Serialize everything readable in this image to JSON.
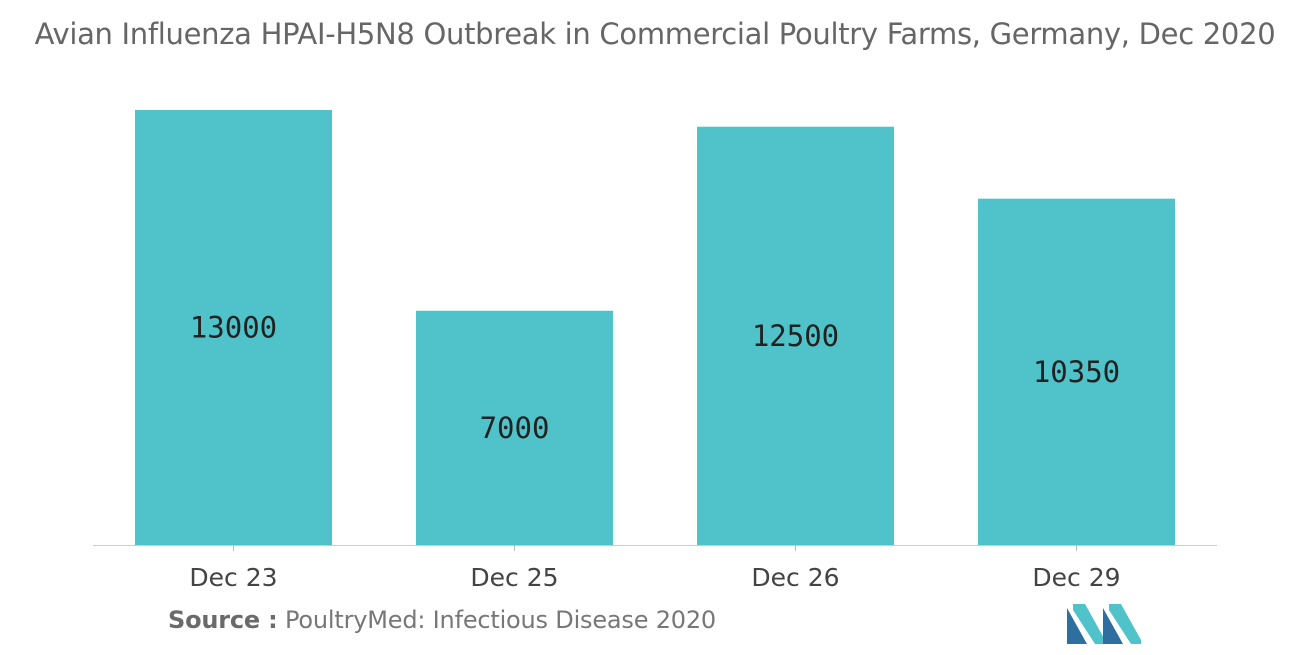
{
  "chart_data": {
    "type": "bar",
    "title": "Avian Influenza HPAI-H5N8 Outbreak in Commercial Poultry Farms, Germany, Dec 2020",
    "categories": [
      "Dec 23",
      "Dec 25",
      "Dec 26",
      "Dec 29"
    ],
    "values": [
      13000,
      7000,
      12500,
      10350
    ],
    "data_labels": [
      "13000",
      "7000",
      "12500",
      "10350"
    ],
    "xlabel": "",
    "ylabel": "",
    "ylim": [
      0,
      13000
    ],
    "grid": false,
    "legend": "none",
    "bar_color": "#4fc3c9",
    "label_position": "bar-center"
  },
  "source": {
    "label": "Source :",
    "text": "PoultryMed: Infectious Disease 2020"
  },
  "logo": {
    "icon": "mordor-intelligence-logo-icon",
    "colors": [
      "#2f6f9f",
      "#4fc3c9"
    ]
  }
}
